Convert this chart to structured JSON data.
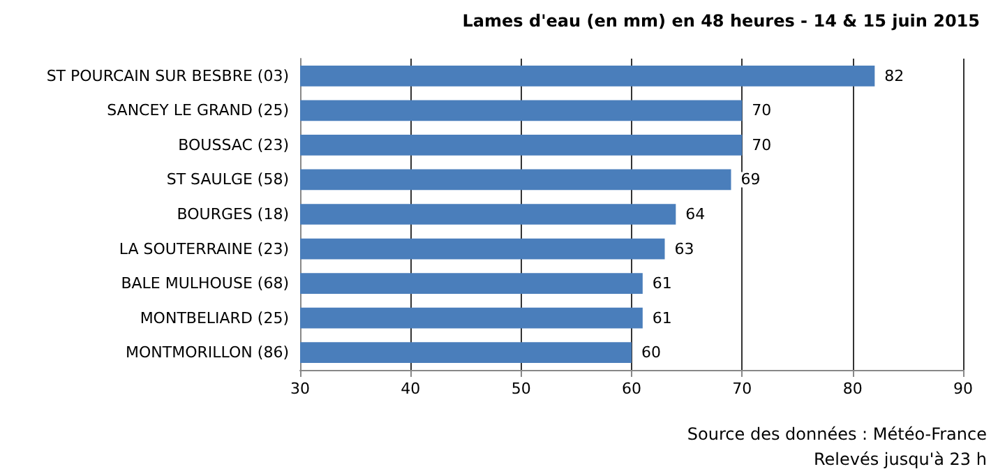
{
  "chart_data": {
    "type": "bar",
    "orientation": "horizontal",
    "title": "Lames d'eau (en mm) en 48 heures - 14 & 15 juin 2015",
    "categories": [
      "ST POURCAIN SUR BESBRE (03)",
      "SANCEY LE GRAND (25)",
      "BOUSSAC (23)",
      "ST SAULGE (58)",
      "BOURGES (18)",
      "LA SOUTERRAINE (23)",
      "BALE MULHOUSE (68)",
      "MONTBELIARD (25)",
      "MONTMORILLON (86)"
    ],
    "values": [
      82,
      70,
      70,
      69,
      64,
      63,
      61,
      61,
      60
    ],
    "color": "#4a7ebb",
    "xlim": [
      30,
      90
    ],
    "xticks": [
      30,
      40,
      50,
      60,
      70,
      80,
      90
    ],
    "grid": "x",
    "data_labels": true,
    "annotations": [
      "Source des données : Météo-France",
      "Relevés jusqu'à 23 h"
    ]
  }
}
